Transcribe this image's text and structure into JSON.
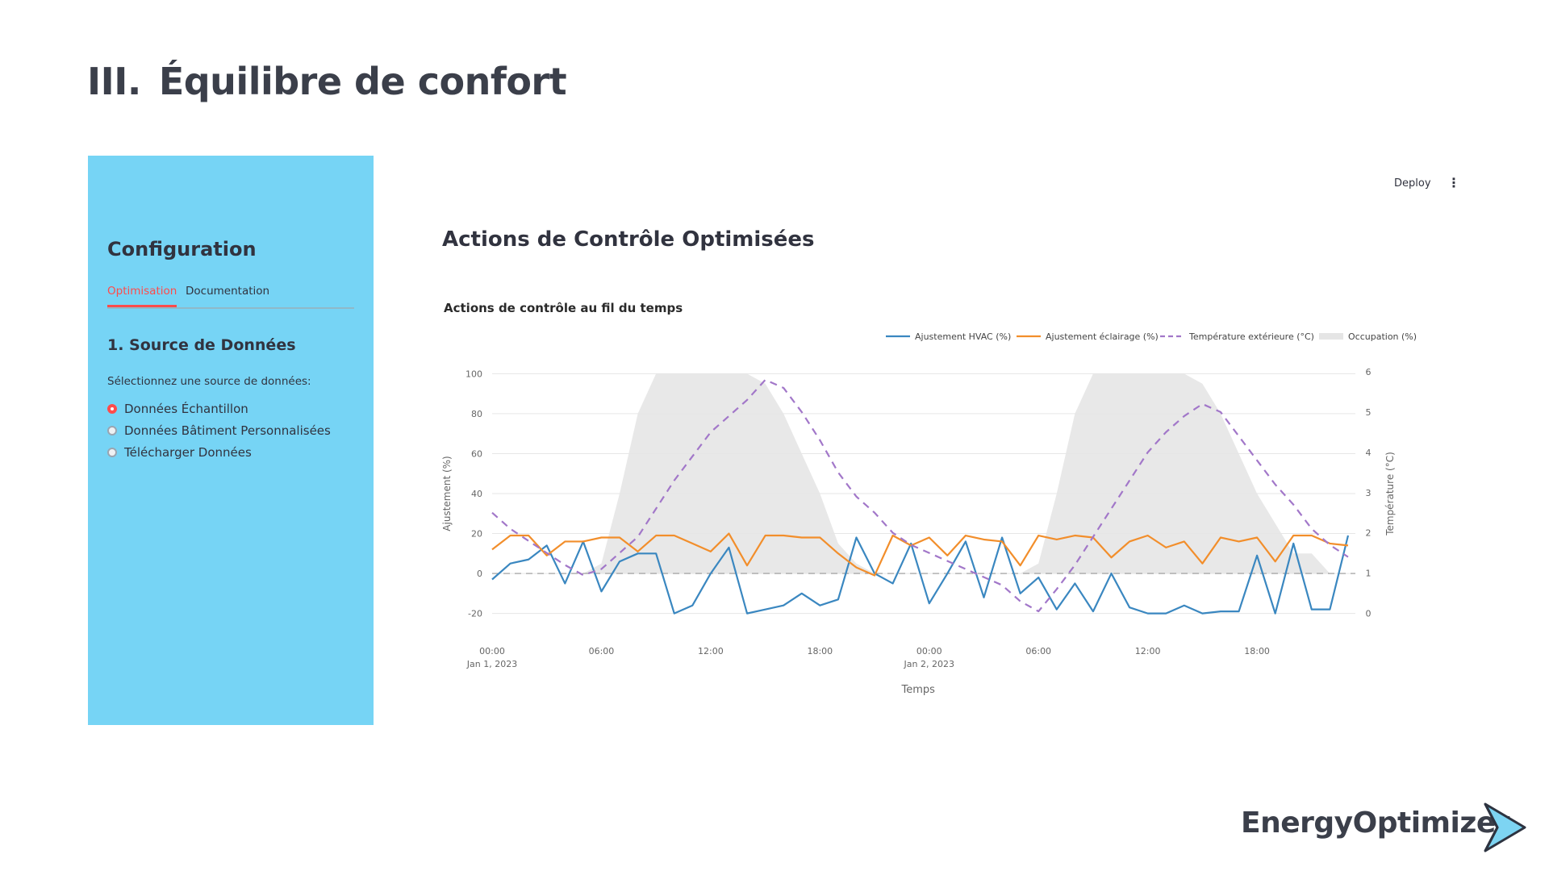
{
  "slide": {
    "number": "III.",
    "title": "Équilibre de confort"
  },
  "sidebar": {
    "title": "Configuration",
    "tabs": [
      {
        "label": "Optimisation",
        "active": true
      },
      {
        "label": "Documentation",
        "active": false
      }
    ],
    "section_title": "1. Source de Données",
    "select_label": "Sélectionnez une source de données:",
    "options": [
      {
        "label": "Données Échantillon",
        "selected": true
      },
      {
        "label": "Données Bâtiment Personnalisées",
        "selected": false
      },
      {
        "label": "Télécharger Données",
        "selected": false
      }
    ],
    "background": "#76d4f5"
  },
  "toolbar": {
    "deploy_label": "Deploy",
    "menu_icon": "kebab-menu-icon"
  },
  "main": {
    "title": "Actions de Contrôle Optimisées"
  },
  "chart_data": {
    "type": "line",
    "title": "Actions de contrôle au fil du temps",
    "xlabel": "Temps",
    "ylabel": "Ajustement (%)",
    "y2label": "Température (°C)",
    "ylim": [
      -25,
      105
    ],
    "y2lim": [
      -0.25,
      6.2
    ],
    "yticks": [
      100,
      80,
      60,
      40,
      20,
      0,
      -20
    ],
    "y2ticks": [
      6,
      5,
      4,
      3,
      2,
      1,
      0
    ],
    "xticks": [
      {
        "hour": 0,
        "label": "00:00",
        "sub": "Jan 1, 2023"
      },
      {
        "hour": 6,
        "label": "06:00",
        "sub": ""
      },
      {
        "hour": 12,
        "label": "12:00",
        "sub": ""
      },
      {
        "hour": 18,
        "label": "18:00",
        "sub": ""
      },
      {
        "hour": 24,
        "label": "00:00",
        "sub": "Jan 2, 2023"
      },
      {
        "hour": 30,
        "label": "06:00",
        "sub": ""
      },
      {
        "hour": 36,
        "label": "12:00",
        "sub": ""
      },
      {
        "hour": 42,
        "label": "18:00",
        "sub": ""
      }
    ],
    "legend_position": "top-right",
    "grid": true,
    "x_hours": [
      0,
      1,
      2,
      3,
      4,
      5,
      6,
      7,
      8,
      9,
      10,
      11,
      12,
      13,
      14,
      15,
      16,
      17,
      18,
      19,
      20,
      21,
      22,
      23,
      24,
      25,
      26,
      27,
      28,
      29,
      30,
      31,
      32,
      33,
      34,
      35,
      36,
      37,
      38,
      39,
      40,
      41,
      42,
      43,
      44,
      45,
      46,
      47
    ],
    "series": [
      {
        "name": "Ajustement HVAC (%)",
        "color": "#3a87c0",
        "axis": "y",
        "style": "solid",
        "values": [
          -3,
          5,
          7,
          14,
          -5,
          16,
          -9,
          6,
          10,
          10,
          -20,
          -16,
          0,
          13,
          -20,
          -18,
          -16,
          -10,
          -16,
          -13,
          18,
          0,
          -5,
          15,
          -15,
          0,
          16,
          -12,
          18,
          -10,
          -2,
          -18,
          -5,
          -19,
          0,
          -17,
          -20,
          -20,
          -16,
          -20,
          -19,
          -19,
          9,
          -20,
          15,
          -18,
          -18,
          19
        ]
      },
      {
        "name": "Ajustement éclairage (%)",
        "color": "#f28e2b",
        "axis": "y",
        "style": "solid",
        "values": [
          12,
          19,
          19,
          9,
          16,
          16,
          18,
          18,
          11,
          19,
          19,
          15,
          11,
          20,
          4,
          19,
          19,
          18,
          18,
          10,
          3,
          -1,
          19,
          14,
          18,
          9,
          19,
          17,
          16,
          4,
          19,
          17,
          19,
          18,
          8,
          16,
          19,
          13,
          16,
          5,
          18,
          16,
          18,
          6,
          19,
          19,
          15,
          14
        ]
      },
      {
        "name": "Température extérieure (°C)",
        "color": "#a277c9",
        "axis": "y2",
        "style": "dashed",
        "values": [
          2.5,
          2.1,
          1.8,
          1.5,
          1.2,
          0.95,
          1.1,
          1.5,
          1.9,
          2.6,
          3.3,
          3.9,
          4.5,
          4.9,
          5.3,
          5.8,
          5.6,
          5.0,
          4.3,
          3.5,
          2.9,
          2.5,
          2.0,
          1.7,
          1.5,
          1.3,
          1.1,
          0.9,
          0.7,
          0.3,
          0.05,
          0.6,
          1.2,
          1.9,
          2.6,
          3.3,
          4.0,
          4.5,
          4.9,
          5.2,
          5.0,
          4.4,
          3.8,
          3.2,
          2.7,
          2.1,
          1.7,
          1.4
        ]
      },
      {
        "name": "Occupation (%)",
        "color": "#e5e5e5",
        "axis": "y",
        "style": "area",
        "values": [
          0,
          0,
          0,
          0,
          0,
          0,
          5,
          40,
          80,
          100,
          100,
          100,
          100,
          100,
          100,
          95,
          80,
          60,
          40,
          15,
          5,
          0,
          0,
          0,
          0,
          0,
          0,
          0,
          0,
          0,
          5,
          40,
          80,
          100,
          100,
          100,
          100,
          100,
          100,
          95,
          80,
          60,
          40,
          25,
          10,
          10,
          0,
          0
        ]
      }
    ]
  },
  "brand": {
    "name": "EnergyOptimizer",
    "accent": "#7dd4f2"
  }
}
